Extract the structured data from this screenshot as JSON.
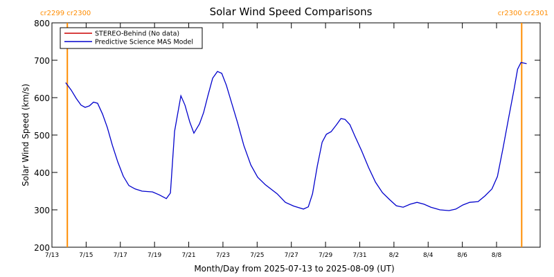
{
  "chart_data": {
    "type": "line",
    "title": "Solar Wind Speed Comparisons",
    "x_label": "Month/Day from 2025-07-13 to 2025-08-09 (UT)",
    "y_label": "Solar Wind Speed (km/s)",
    "xlim": [
      0,
      28.55
    ],
    "ylim": [
      200,
      800
    ],
    "yticks": [
      200,
      300,
      400,
      500,
      600,
      700,
      800
    ],
    "xticks": [
      {
        "value": 0,
        "label": "7/13"
      },
      {
        "value": 2,
        "label": "7/15"
      },
      {
        "value": 4,
        "label": "7/17"
      },
      {
        "value": 6,
        "label": "7/19"
      },
      {
        "value": 8,
        "label": "7/21"
      },
      {
        "value": 10,
        "label": "7/23"
      },
      {
        "value": 12,
        "label": "7/25"
      },
      {
        "value": 14,
        "label": "7/27"
      },
      {
        "value": 16,
        "label": "7/29"
      },
      {
        "value": 18,
        "label": "7/31"
      },
      {
        "value": 20,
        "label": "8/2"
      },
      {
        "value": 22,
        "label": "8/4"
      },
      {
        "value": 24,
        "label": "8/6"
      },
      {
        "value": 26,
        "label": "8/8"
      }
    ],
    "markers_color": "#ff8c00",
    "markers": [
      {
        "x": 0.9,
        "label": "cr2299 cr2300"
      },
      {
        "x": 27.47,
        "label": "cr2300 cr2301"
      }
    ],
    "series": [
      {
        "name": "STEREO-Behind (No data)",
        "color": "#cc0000",
        "x": [],
        "values": []
      },
      {
        "name": "Predictive Science MAS Model",
        "color": "#0000cc",
        "x": [
          0.8,
          1.13,
          1.42,
          1.7,
          1.94,
          2.19,
          2.43,
          2.67,
          2.96,
          3.24,
          3.53,
          3.85,
          4.17,
          4.5,
          4.86,
          5.27,
          5.88,
          6.28,
          6.69,
          6.93,
          7.17,
          7.54,
          7.78,
          8.06,
          8.3,
          8.63,
          8.87,
          9.12,
          9.4,
          9.68,
          9.93,
          10.2,
          10.5,
          10.86,
          11.22,
          11.63,
          12.03,
          12.48,
          13.17,
          13.65,
          14.14,
          14.71,
          14.99,
          15.24,
          15.52,
          15.8,
          16.05,
          16.33,
          16.65,
          16.9,
          17.14,
          17.42,
          17.71,
          18.11,
          18.52,
          18.92,
          19.33,
          19.73,
          20.14,
          20.54,
          20.95,
          21.35,
          21.76,
          22.16,
          22.69,
          23.22,
          23.62,
          24.03,
          24.43,
          24.92,
          25.32,
          25.73,
          26.05,
          26.38,
          26.7,
          27.03,
          27.23,
          27.43,
          27.76
        ],
        "values": [
          640,
          620,
          598,
          580,
          574,
          578,
          588,
          585,
          556,
          520,
          473,
          428,
          390,
          365,
          356,
          350,
          348,
          340,
          330,
          345,
          510,
          605,
          580,
          535,
          505,
          530,
          560,
          605,
          652,
          670,
          665,
          633,
          587,
          532,
          472,
          420,
          387,
          367,
          343,
          320,
          310,
          302,
          308,
          343,
          417,
          481,
          502,
          509,
          528,
          544,
          542,
          528,
          498,
          458,
          413,
          374,
          346,
          328,
          311,
          307,
          315,
          320,
          315,
          307,
          300,
          298,
          302,
          313,
          320,
          322,
          337,
          356,
          389,
          465,
          544,
          624,
          676,
          694,
          691
        ]
      }
    ]
  }
}
